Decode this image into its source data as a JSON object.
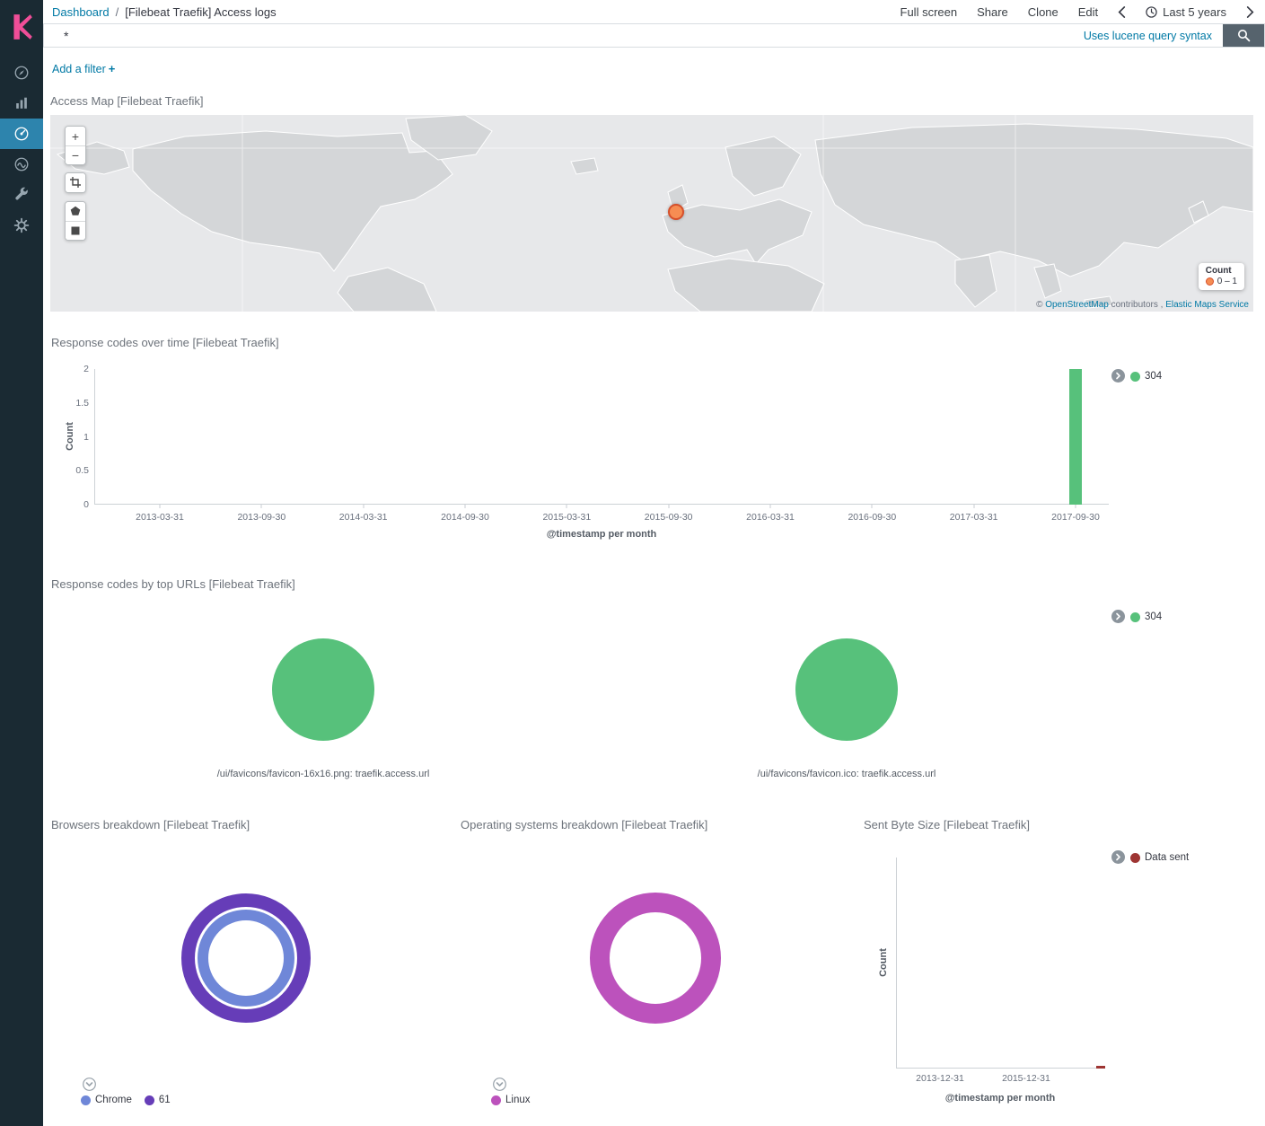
{
  "colors": {
    "link": "#0079a5",
    "sidebar_bg": "#1a2a33",
    "active_nav": "#2d84ad",
    "logo_pink": "#f04e98",
    "green": "#57c17b",
    "blue": "#6f87d8",
    "purple": "#663db8",
    "magenta": "#bc52bc",
    "dark_red": "#9e3533",
    "marker_fill": "#f68d53",
    "marker_stroke": "#d6502c"
  },
  "sidebar": {
    "items": [
      {
        "app": "discover",
        "icon": "compass-icon"
      },
      {
        "app": "visualize",
        "icon": "bar-chart-icon"
      },
      {
        "app": "dashboard",
        "icon": "gauge-icon",
        "active": true
      },
      {
        "app": "timelion",
        "icon": "wave-icon"
      },
      {
        "app": "dev-tools",
        "icon": "wrench-icon"
      },
      {
        "app": "management",
        "icon": "gear-icon"
      }
    ]
  },
  "topbar": {
    "breadcrumb_root": "Dashboard",
    "breadcrumb_sep": "/",
    "title": "[Filebeat Traefik] Access logs",
    "actions": [
      "Full screen",
      "Share",
      "Clone",
      "Edit"
    ],
    "time_range": "Last 5 years"
  },
  "querybar": {
    "query": "*",
    "syntax_hint": "Uses lucene query syntax"
  },
  "filterbar": {
    "label": "Add a filter",
    "plus": "+"
  },
  "map_panel": {
    "title": "Access Map [Filebeat Traefik]",
    "zoom_in": "+",
    "zoom_out": "−",
    "tool_icons": [
      "crop-icon",
      "polygon-icon",
      "rectangle-icon"
    ],
    "legend": {
      "title": "Count",
      "range": "0 – 1"
    },
    "attribution": {
      "prefix": "© ",
      "osm": "OpenStreetMap",
      "middle": " contributors , ",
      "elastic": "Elastic Maps Service"
    }
  },
  "chart_data": [
    {
      "id": "response_codes_over_time",
      "type": "bar",
      "title": "Response codes over time [Filebeat Traefik]",
      "xlabel": "@timestamp per month",
      "ylabel": "Count",
      "ylim": [
        0,
        2
      ],
      "yticks": [
        0,
        0.5,
        1,
        1.5,
        2
      ],
      "x": [
        "2013-03-31",
        "2013-09-30",
        "2014-03-31",
        "2014-09-30",
        "2015-03-31",
        "2015-09-30",
        "2016-03-31",
        "2016-09-30",
        "2017-03-31",
        "2017-09-30"
      ],
      "series": [
        {
          "name": "304",
          "color": "#57c17b",
          "values": [
            0,
            0,
            0,
            0,
            0,
            0,
            0,
            0,
            0,
            2
          ]
        }
      ],
      "legend": [
        {
          "name": "304",
          "color": "#57c17b"
        }
      ],
      "legend_position": "right",
      "grid": false
    },
    {
      "id": "response_codes_by_top_urls",
      "type": "pie",
      "title": "Response codes by top URLs [Filebeat Traefik]",
      "charts": [
        {
          "label": "/ui/favicons/favicon-16x16.png: traefik.access.url",
          "slices": [
            {
              "name": "304",
              "value": 100,
              "color": "#57c17b"
            }
          ]
        },
        {
          "label": "/ui/favicons/favicon.ico: traefik.access.url",
          "slices": [
            {
              "name": "304",
              "value": 100,
              "color": "#57c17b"
            }
          ]
        }
      ],
      "legend": [
        {
          "name": "304",
          "color": "#57c17b"
        }
      ],
      "legend_position": "right"
    },
    {
      "id": "browsers_breakdown",
      "type": "pie",
      "title": "Browsers breakdown [Filebeat Traefik]",
      "rings": [
        {
          "level": "inner",
          "name": "Chrome",
          "value": 100,
          "color": "#6f87d8"
        },
        {
          "level": "outer",
          "name": "61",
          "value": 100,
          "color": "#663db8"
        }
      ],
      "legend": [
        {
          "name": "Chrome",
          "color": "#6f87d8"
        },
        {
          "name": "61",
          "color": "#663db8"
        }
      ],
      "legend_position": "bottom"
    },
    {
      "id": "os_breakdown",
      "type": "pie",
      "title": "Operating systems breakdown [Filebeat Traefik]",
      "rings": [
        {
          "level": "single",
          "name": "Linux",
          "value": 100,
          "color": "#bc52bc"
        }
      ],
      "legend": [
        {
          "name": "Linux",
          "color": "#bc52bc"
        }
      ],
      "legend_position": "bottom"
    },
    {
      "id": "sent_byte_size",
      "type": "line",
      "title": "Sent Byte Size [Filebeat Traefik]",
      "xlabel": "@timestamp per month",
      "ylabel": "Count",
      "xticks": [
        "2013-12-31",
        "2015-12-31"
      ],
      "series": [
        {
          "name": "Data sent",
          "color": "#9e3533"
        }
      ],
      "legend": [
        {
          "name": "Data sent",
          "color": "#9e3533"
        }
      ],
      "legend_position": "right"
    }
  ]
}
